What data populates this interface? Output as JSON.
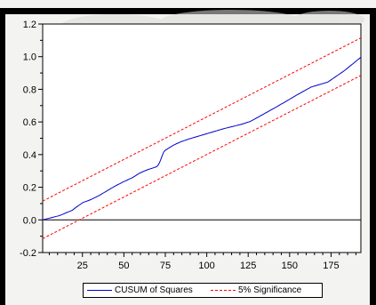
{
  "chart_data": {
    "type": "line",
    "x": [
      1,
      2,
      3,
      4,
      5,
      6,
      7,
      8,
      9,
      10,
      11,
      12,
      13,
      14,
      15,
      16,
      17,
      18,
      19,
      20,
      21,
      22,
      23,
      24,
      25,
      26,
      27,
      28,
      29,
      30,
      31,
      32,
      33,
      34,
      35,
      36,
      37,
      38,
      39,
      40,
      41,
      42,
      43,
      44,
      45,
      46,
      47,
      48,
      49,
      50,
      51,
      52,
      53,
      54,
      55,
      56,
      57,
      58,
      59,
      60,
      61,
      62,
      63,
      64,
      65,
      66,
      67,
      68,
      69,
      70,
      71,
      72,
      73,
      74,
      75,
      76,
      77,
      78,
      79,
      80,
      81,
      82,
      83,
      84,
      85,
      86,
      87,
      88,
      89,
      90,
      91,
      92,
      93,
      94,
      95,
      96,
      97,
      98,
      99,
      100,
      101,
      102,
      103,
      104,
      105,
      106,
      107,
      108,
      109,
      110,
      111,
      112,
      113,
      114,
      115,
      116,
      117,
      118,
      119,
      120,
      121,
      122,
      123,
      124,
      125,
      126,
      127,
      128,
      129,
      130,
      131,
      132,
      133,
      134,
      135,
      136,
      137,
      138,
      139,
      140,
      141,
      142,
      143,
      144,
      145,
      146,
      147,
      148,
      149,
      150,
      151,
      152,
      153,
      154,
      155,
      156,
      157,
      158,
      159,
      160,
      161,
      162,
      163,
      164,
      165,
      166,
      167,
      168,
      169,
      170,
      171,
      172,
      173,
      174,
      175,
      176,
      177,
      178,
      179,
      180,
      181,
      182,
      183,
      184,
      185,
      186,
      187,
      188,
      189,
      190,
      191,
      192,
      193
    ],
    "series": [
      {
        "name": "CUSUM of Squares",
        "color": "#0000cc",
        "style": "solid",
        "values": [
          0.0,
          0.003,
          0.005,
          0.008,
          0.01,
          0.013,
          0.016,
          0.018,
          0.021,
          0.023,
          0.026,
          0.03,
          0.034,
          0.038,
          0.043,
          0.047,
          0.051,
          0.055,
          0.06,
          0.068,
          0.076,
          0.083,
          0.09,
          0.097,
          0.105,
          0.109,
          0.113,
          0.116,
          0.12,
          0.124,
          0.129,
          0.134,
          0.139,
          0.144,
          0.149,
          0.155,
          0.161,
          0.167,
          0.173,
          0.179,
          0.185,
          0.191,
          0.197,
          0.203,
          0.209,
          0.214,
          0.219,
          0.224,
          0.23,
          0.235,
          0.239,
          0.244,
          0.249,
          0.253,
          0.258,
          0.264,
          0.27,
          0.277,
          0.283,
          0.289,
          0.293,
          0.298,
          0.302,
          0.306,
          0.31,
          0.313,
          0.316,
          0.32,
          0.323,
          0.327,
          0.341,
          0.363,
          0.39,
          0.415,
          0.427,
          0.433,
          0.44,
          0.446,
          0.452,
          0.458,
          0.463,
          0.468,
          0.472,
          0.477,
          0.481,
          0.484,
          0.488,
          0.491,
          0.495,
          0.498,
          0.501,
          0.504,
          0.507,
          0.51,
          0.513,
          0.516,
          0.519,
          0.522,
          0.525,
          0.528,
          0.531,
          0.534,
          0.537,
          0.54,
          0.543,
          0.546,
          0.549,
          0.552,
          0.555,
          0.558,
          0.561,
          0.563,
          0.566,
          0.568,
          0.571,
          0.573,
          0.576,
          0.578,
          0.581,
          0.583,
          0.586,
          0.589,
          0.592,
          0.596,
          0.599,
          0.602,
          0.607,
          0.613,
          0.618,
          0.624,
          0.629,
          0.635,
          0.641,
          0.646,
          0.652,
          0.658,
          0.663,
          0.669,
          0.675,
          0.68,
          0.686,
          0.692,
          0.698,
          0.704,
          0.71,
          0.715,
          0.721,
          0.727,
          0.733,
          0.739,
          0.745,
          0.751,
          0.757,
          0.763,
          0.769,
          0.774,
          0.78,
          0.786,
          0.791,
          0.797,
          0.803,
          0.808,
          0.814,
          0.817,
          0.82,
          0.823,
          0.826,
          0.829,
          0.832,
          0.835,
          0.838,
          0.841,
          0.844,
          0.851,
          0.858,
          0.865,
          0.872,
          0.879,
          0.886,
          0.893,
          0.9,
          0.907,
          0.914,
          0.922,
          0.93,
          0.939,
          0.947,
          0.955,
          0.963,
          0.972,
          0.98,
          0.988,
          0.996
        ]
      },
      {
        "name": "5% Significance",
        "color": "#ff0000",
        "style": "dashed",
        "bounds": [
          {
            "x": [
              1,
              193
            ],
            "values": [
              0.115,
              1.115
            ]
          },
          {
            "x": [
              1,
              193
            ],
            "values": [
              -0.115,
              0.885
            ]
          }
        ]
      }
    ],
    "xlim": [
      1,
      193
    ],
    "ylim": [
      -0.2,
      1.2
    ],
    "xticks": [
      25,
      50,
      75,
      100,
      125,
      150,
      175
    ],
    "yticks": [
      -0.2,
      0.0,
      0.2,
      0.4,
      0.6,
      0.8,
      1.0,
      1.2
    ],
    "ytick_labels": [
      "-0.2",
      "0.0",
      "0.2",
      "0.4",
      "0.6",
      "0.8",
      "1.0",
      "1.2"
    ],
    "zero_line": true,
    "grid": false,
    "legend_position": "bottom-center",
    "title": "",
    "xlabel": "",
    "ylabel": ""
  },
  "legend": {
    "items": [
      {
        "label": "CUSUM of Squares",
        "color": "#0000cc",
        "style": "solid"
      },
      {
        "label": "5% Significance",
        "color": "#ff0000",
        "style": "dashed"
      }
    ]
  }
}
